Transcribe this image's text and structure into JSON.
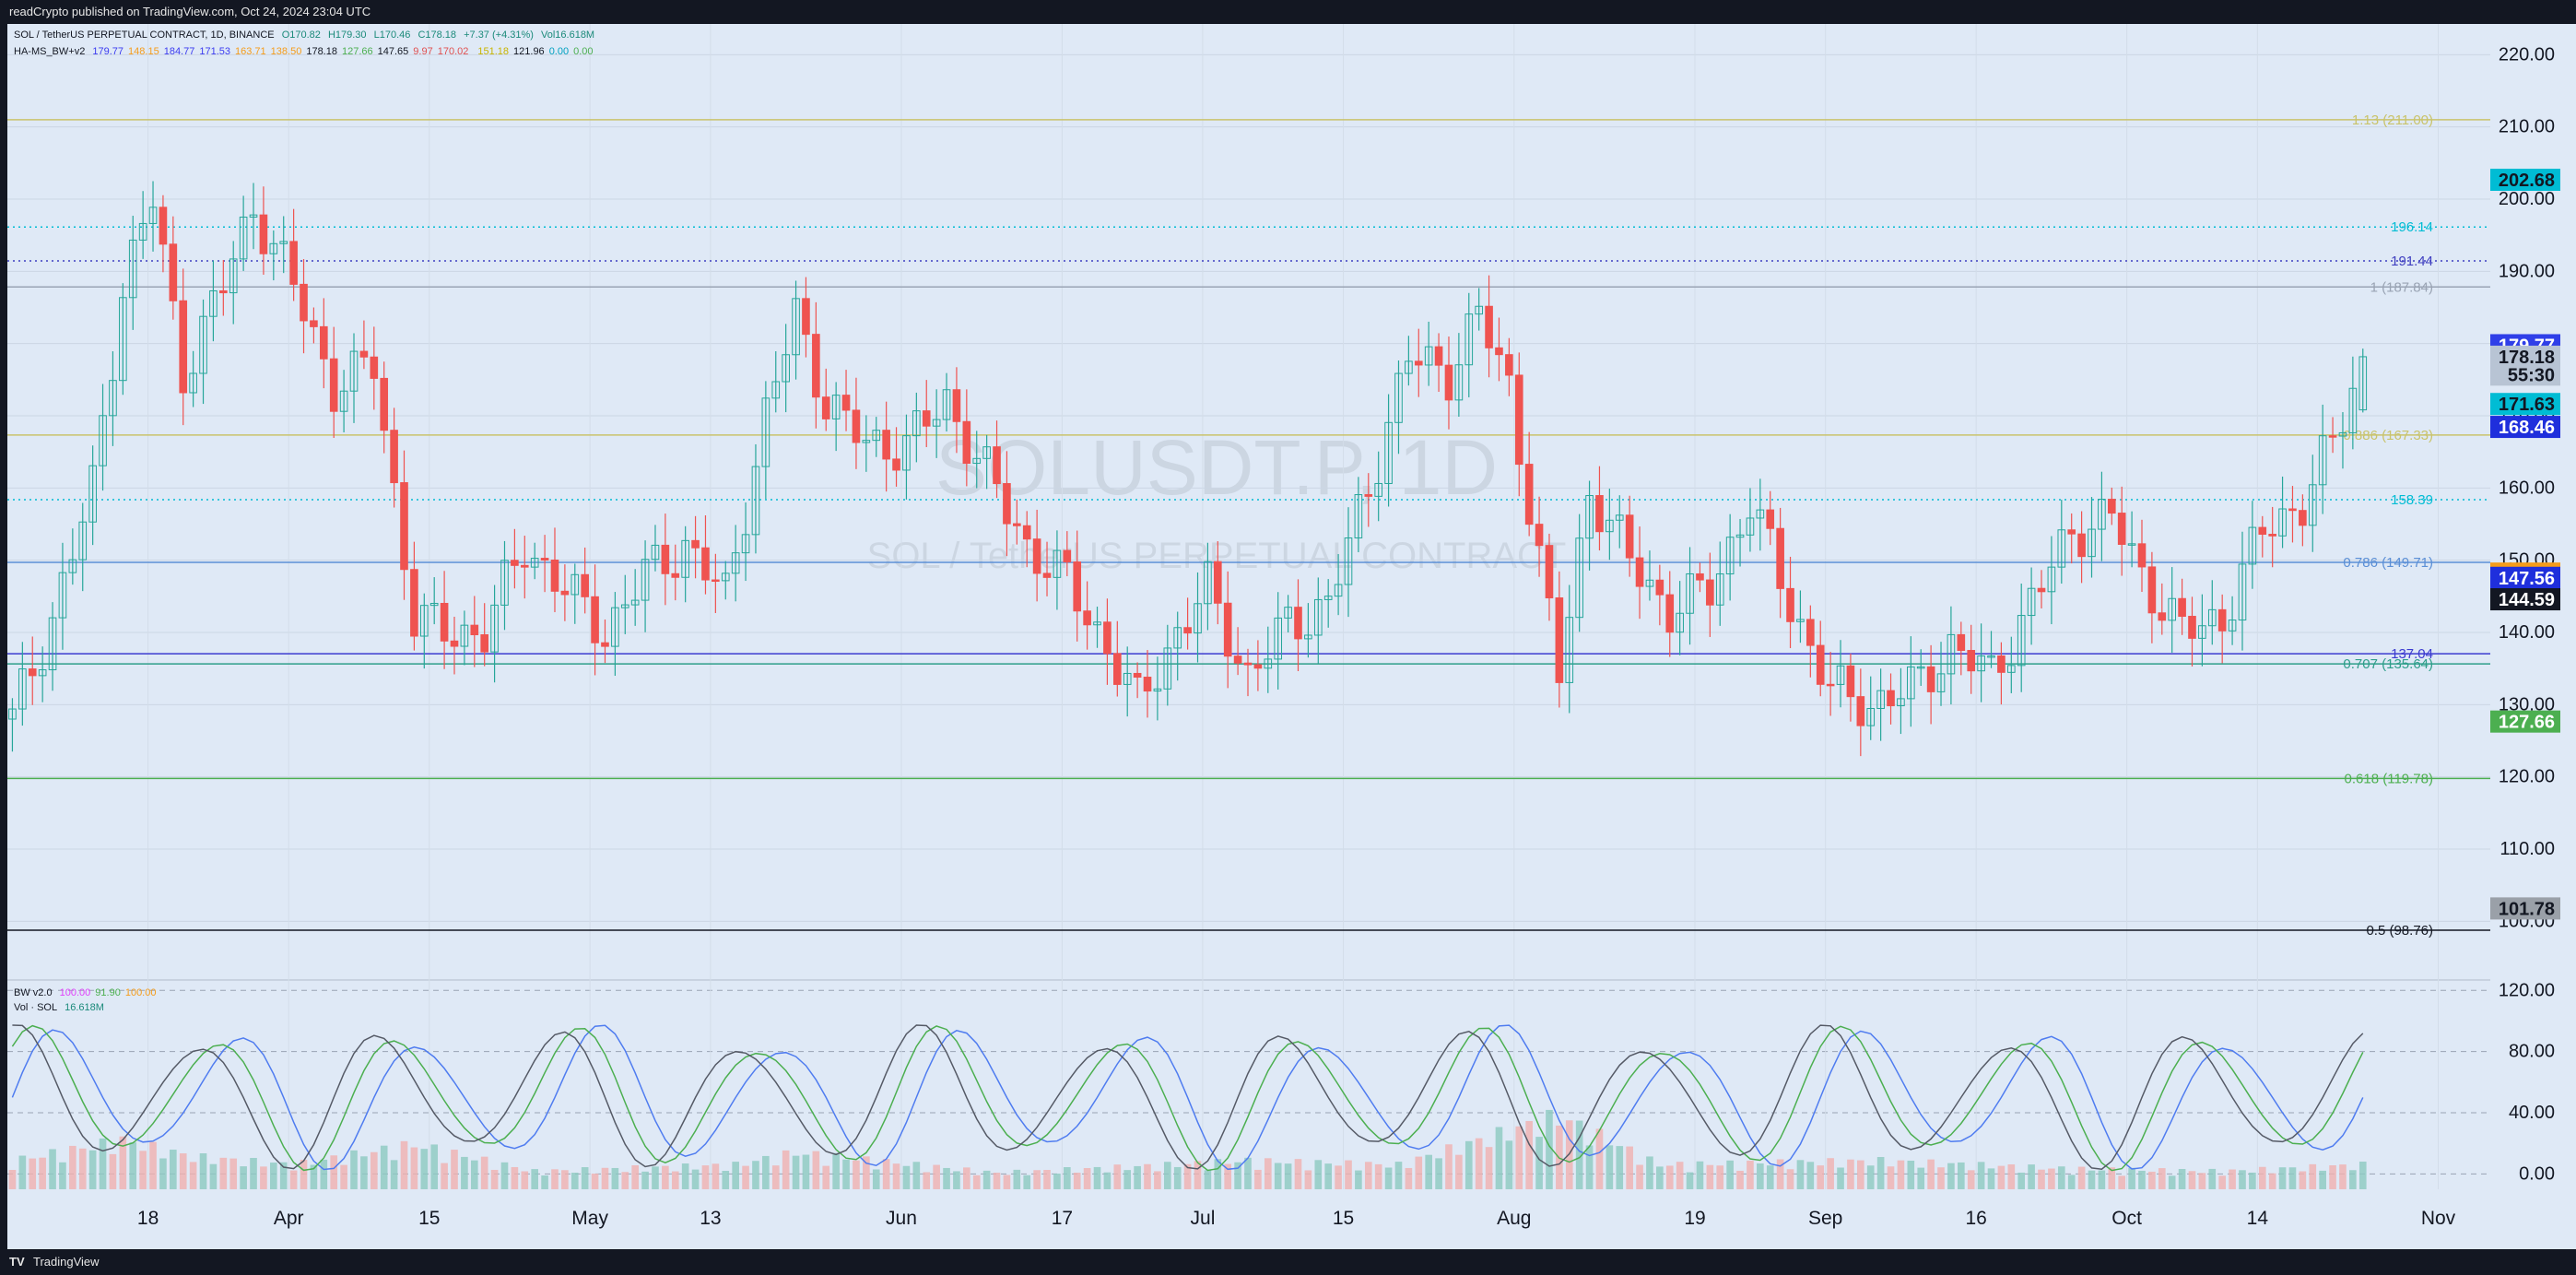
{
  "header": {
    "published": "readCrypto published on TradingView.com, Oct 24, 2024 23:04 UTC"
  },
  "footer": {
    "logo": "TV",
    "brand": "TradingView"
  },
  "legend": {
    "symbol": "SOL / TetherUS PERPETUAL CONTRACT, 1D, BINANCE",
    "ohlc": [
      "O170.82",
      "H179.30",
      "L170.46",
      "C178.18",
      "+7.37 (+4.31%)",
      "Vol16.618M"
    ],
    "indicator_name": "HA-MS_BW+v2",
    "indicator_values": [
      {
        "v": "179.77",
        "c": "#3b3bf0"
      },
      {
        "v": "148.15",
        "c": "#f59c1a"
      },
      {
        "v": "184.77",
        "c": "#3b3bf0"
      },
      {
        "v": "171.53",
        "c": "#3b3bf0"
      },
      {
        "v": "163.71",
        "c": "#f59c1a"
      },
      {
        "v": "138.50",
        "c": "#f59c1a"
      },
      {
        "v": "178.18",
        "c": "#131722"
      },
      {
        "v": "127.66",
        "c": "#4caf50"
      },
      {
        "v": "147.65",
        "c": "#131722"
      },
      {
        "v": "9.97",
        "c": "#e05050"
      },
      {
        "v": "170.02",
        "c": "#e05050"
      },
      {
        "v": "",
        "c": "#f0e060"
      },
      {
        "v": "151.18",
        "c": "#c8b400"
      },
      {
        "v": "121.96",
        "c": "#131722"
      },
      {
        "v": "0.00",
        "c": "#00a0c0"
      },
      {
        "v": "0.00",
        "c": "#4caf50"
      }
    ],
    "bw_name": "BW v2.0",
    "bw_values": [
      {
        "v": "100.00",
        "c": "#e040fb"
      },
      {
        "v": "91.90",
        "c": "#4caf50"
      },
      {
        "v": "100.00",
        "c": "#f59c1a"
      }
    ],
    "vol_name": "Vol · SOL",
    "vol_value": "16.618M"
  },
  "watermark": {
    "symbol": "SOLUSDT.P, 1D",
    "name": "SOL / TetherUS PERPETUAL CONTRACT"
  },
  "colors": {
    "background": "#131722",
    "pane": "#dfe9f6",
    "up": "#26a69a",
    "down": "#ef5350"
  },
  "chart_data": [
    {
      "type": "candlestick",
      "title": "SOL / TetherUS PERPETUAL CONTRACT, 1D, BINANCE",
      "ylim": [
        92,
        224
      ],
      "y_ticks": [
        "220.00",
        "210.00",
        "200.00",
        "190.00",
        "180.00",
        "170.00",
        "160.00",
        "150.00",
        "140.00",
        "130.00",
        "120.00",
        "110.00",
        "100.00"
      ],
      "x_ticks": [
        "18",
        "Apr",
        "15",
        "May",
        "13",
        "Jun",
        "17",
        "Jul",
        "15",
        "Aug",
        "19",
        "Sep",
        "16",
        "Oct",
        "14",
        "Nov"
      ],
      "x_tick_dates": [
        "2024-03-18",
        "2024-04-01",
        "2024-04-15",
        "2024-05-01",
        "2024-05-13",
        "2024-06-01",
        "2024-06-17",
        "2024-07-01",
        "2024-07-15",
        "2024-08-01",
        "2024-08-19",
        "2024-09-01",
        "2024-09-16",
        "2024-10-01",
        "2024-10-14",
        "2024-11-01"
      ],
      "x_range": [
        "2024-03-04",
        "2024-11-06"
      ],
      "last_candle": {
        "date": "2024-10-24",
        "open": 170.82,
        "high": 179.3,
        "low": 170.46,
        "close": 178.18
      },
      "price_path": [
        [
          "2024-03-04",
          128
        ],
        [
          "2024-03-08",
          142
        ],
        [
          "2024-03-12",
          160
        ],
        [
          "2024-03-15",
          188
        ],
        [
          "2024-03-18",
          200
        ],
        [
          "2024-03-21",
          176
        ],
        [
          "2024-03-25",
          188
        ],
        [
          "2024-03-28",
          199
        ],
        [
          "2024-04-01",
          188
        ],
        [
          "2024-04-05",
          174
        ],
        [
          "2024-04-09",
          177
        ],
        [
          "2024-04-13",
          142
        ],
        [
          "2024-04-16",
          140
        ],
        [
          "2024-04-20",
          140
        ],
        [
          "2024-04-24",
          152
        ],
        [
          "2024-04-28",
          146
        ],
        [
          "2024-05-02",
          140
        ],
        [
          "2024-05-06",
          148
        ],
        [
          "2024-05-10",
          152
        ],
        [
          "2024-05-14",
          145
        ],
        [
          "2024-05-18",
          170
        ],
        [
          "2024-05-21",
          184
        ],
        [
          "2024-05-24",
          172
        ],
        [
          "2024-05-28",
          166
        ],
        [
          "2024-06-01",
          166
        ],
        [
          "2024-06-05",
          172
        ],
        [
          "2024-06-09",
          162
        ],
        [
          "2024-06-13",
          152
        ],
        [
          "2024-06-17",
          147
        ],
        [
          "2024-06-21",
          138
        ],
        [
          "2024-06-24",
          130
        ],
        [
          "2024-06-28",
          140
        ],
        [
          "2024-07-01",
          146
        ],
        [
          "2024-07-05",
          134
        ],
        [
          "2024-07-09",
          141
        ],
        [
          "2024-07-13",
          144
        ],
        [
          "2024-07-17",
          160
        ],
        [
          "2024-07-21",
          178
        ],
        [
          "2024-07-25",
          176
        ],
        [
          "2024-07-28",
          184
        ],
        [
          "2024-07-31",
          174
        ],
        [
          "2024-08-03",
          150
        ],
        [
          "2024-08-05",
          134
        ],
        [
          "2024-08-08",
          160
        ],
        [
          "2024-08-12",
          150
        ],
        [
          "2024-08-16",
          143
        ],
        [
          "2024-08-20",
          146
        ],
        [
          "2024-08-24",
          158
        ],
        [
          "2024-08-28",
          144
        ],
        [
          "2024-09-01",
          132
        ],
        [
          "2024-09-05",
          130
        ],
        [
          "2024-09-09",
          132
        ],
        [
          "2024-09-13",
          138
        ],
        [
          "2024-09-17",
          134
        ],
        [
          "2024-09-21",
          144
        ],
        [
          "2024-09-25",
          154
        ],
        [
          "2024-09-29",
          156
        ],
        [
          "2024-10-02",
          148
        ],
        [
          "2024-10-06",
          140
        ],
        [
          "2024-10-10",
          142
        ],
        [
          "2024-10-14",
          154
        ],
        [
          "2024-10-18",
          158
        ],
        [
          "2024-10-21",
          166
        ],
        [
          "2024-10-24",
          178.18
        ]
      ],
      "volume_path": [
        [
          "2024-03-04",
          35
        ],
        [
          "2024-03-15",
          60
        ],
        [
          "2024-03-22",
          40
        ],
        [
          "2024-04-01",
          30
        ],
        [
          "2024-04-13",
          55
        ],
        [
          "2024-04-25",
          22
        ],
        [
          "2024-05-15",
          30
        ],
        [
          "2024-05-21",
          45
        ],
        [
          "2024-06-10",
          20
        ],
        [
          "2024-06-24",
          28
        ],
        [
          "2024-07-05",
          35
        ],
        [
          "2024-07-20",
          30
        ],
        [
          "2024-08-05",
          90
        ],
        [
          "2024-08-15",
          30
        ],
        [
          "2024-09-06",
          35
        ],
        [
          "2024-09-25",
          25
        ],
        [
          "2024-10-10",
          22
        ],
        [
          "2024-10-24",
          30
        ]
      ],
      "horizontal_levels": [
        {
          "label": "1.13 (211.00)",
          "value": 211.0,
          "color": "#c9c36b",
          "style": "solid"
        },
        {
          "label": "196.14",
          "value": 196.14,
          "color": "#00bcd4",
          "style": "dotted"
        },
        {
          "label": "191.44",
          "value": 191.44,
          "color": "#3f3fc0",
          "style": "dotted"
        },
        {
          "label": "1 (187.84)",
          "value": 187.84,
          "color": "#9aa4b4",
          "style": "solid"
        },
        {
          "label": "0.886 (167.33)",
          "value": 167.33,
          "color": "#c9c36b",
          "style": "solid"
        },
        {
          "label": "158.39",
          "value": 158.39,
          "color": "#00bcd4",
          "style": "dotted"
        },
        {
          "label": "0.786 (149.71)",
          "value": 149.71,
          "color": "#5b8fd6",
          "style": "solid"
        },
        {
          "label": "137.04",
          "value": 137.04,
          "color": "#3b3bd0",
          "style": "solid"
        },
        {
          "label": "0.707 (135.64)",
          "value": 135.64,
          "color": "#2e9e8a",
          "style": "solid"
        },
        {
          "label": "0.618 (119.78)",
          "value": 119.78,
          "color": "#4caf50",
          "style": "solid"
        },
        {
          "label": "0.5 (98.76)",
          "value": 98.76,
          "color": "#131722",
          "style": "solid"
        }
      ],
      "price_tags": [
        {
          "label": "202.68",
          "value": 202.68,
          "bg": "#00bcd4",
          "fg": "#131722"
        },
        {
          "label": "179.77",
          "value": 179.77,
          "bg": "#2f3fe8",
          "fg": "#ffffff"
        },
        {
          "label": "178.18",
          "value": 178.18,
          "bg": "#b8c4d4",
          "fg": "#131722"
        },
        {
          "label": "55:30",
          "value": 175.7,
          "bg": "#b8c4d4",
          "fg": "#131722"
        },
        {
          "label": "171.63",
          "value": 171.63,
          "bg": "#00bcd4",
          "fg": "#131722"
        },
        {
          "label": "168.46",
          "value": 168.46,
          "bg": "#1f2fdc",
          "fg": "#ffffff"
        },
        {
          "label": "148.15",
          "value": 148.15,
          "bg": "#f59c1a",
          "fg": "#131722"
        },
        {
          "label": "147.56",
          "value": 147.56,
          "bg": "#1f2fdc",
          "fg": "#ffffff"
        },
        {
          "label": "144.59",
          "value": 144.59,
          "bg": "#131722",
          "fg": "#ffffff"
        },
        {
          "label": "127.66",
          "value": 127.66,
          "bg": "#4caf50",
          "fg": "#ffffff"
        },
        {
          "label": "101.78",
          "value": 101.78,
          "bg": "#9aa0a8",
          "fg": "#131722"
        }
      ]
    },
    {
      "type": "line",
      "title": "BW v2.0",
      "ylim": [
        -10,
        125
      ],
      "y_ticks": [
        "120.00",
        "80.00",
        "40.00",
        "0.00"
      ],
      "series": [
        {
          "name": "",
          "color": "#4f7cf0",
          "period_days": 18,
          "phase": 0
        },
        {
          "name": "",
          "color": "#4caf50",
          "period_days": 18,
          "phase": 2.2
        },
        {
          "name": "",
          "color": "#555a66",
          "period_days": 18,
          "phase": 4
        }
      ]
    }
  ]
}
